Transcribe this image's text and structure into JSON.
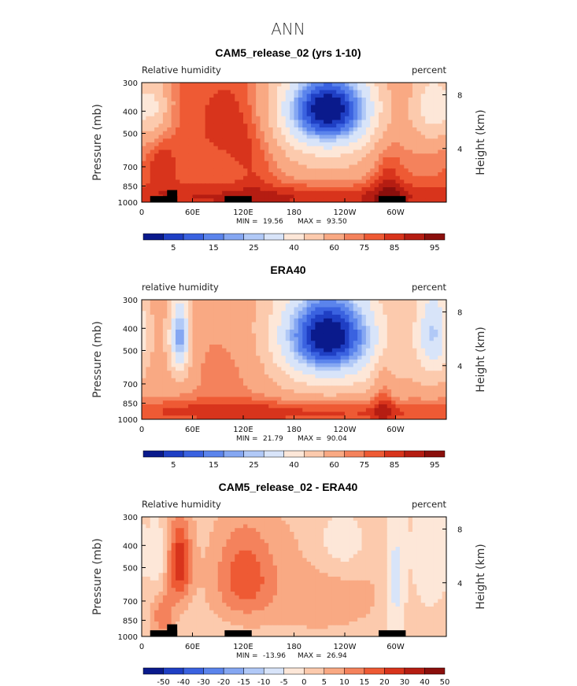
{
  "figure_title": "ANN",
  "colors": {
    "abs_palette": [
      "#0a1a8c",
      "#1f3fc4",
      "#3a62e0",
      "#5b84ec",
      "#85a7f2",
      "#b1c9f7",
      "#d8e4f9",
      "#fde7d8",
      "#fccaad",
      "#f9a983",
      "#f4825c",
      "#ee5a34",
      "#d8341c",
      "#b51d12",
      "#8a0f0c"
    ],
    "diff_palette": [
      "#0a1a8c",
      "#1f3fc4",
      "#3a62e0",
      "#5b84ec",
      "#85a7f2",
      "#b1c9f7",
      "#d8e4f9",
      "#fde7d8",
      "#fccaad",
      "#f9a983",
      "#f4825c",
      "#ee5a34",
      "#d8341c",
      "#b51d12",
      "#8a0f0c"
    ]
  },
  "chart_data": [
    {
      "type": "heatmap",
      "title": "CAM5_release_02 (yrs 1-10)",
      "left_label": "Relative humidity",
      "right_label": "percent",
      "ylabel": "Pressure (mb)",
      "y2label": "Height (km)",
      "yticks": [
        "300",
        "400",
        "500",
        "700",
        "850",
        "1000"
      ],
      "y2ticks": [
        "8",
        "4"
      ],
      "xticks": [
        "0",
        "60E",
        "120E",
        "180",
        "120W",
        "60W"
      ],
      "min_label": "MIN =",
      "min_value": "19.56",
      "max_label": "MAX =",
      "max_value": "93.50",
      "colorbar_ticks": [
        "5",
        "15",
        "25",
        "40",
        "60",
        "75",
        "85",
        "95"
      ],
      "palette": "abs",
      "base": 75,
      "features": [
        {
          "lon": 25,
          "p": 700,
          "amp": 10,
          "slon": 12,
          "sp": 120
        },
        {
          "lon": 105,
          "p": 450,
          "amp": 10,
          "slon": 30,
          "sp": 140
        },
        {
          "lon": 135,
          "p": 650,
          "amp": 8,
          "slon": 20,
          "sp": 180
        },
        {
          "lon": 220,
          "p": 380,
          "amp": -62,
          "slon": 42,
          "sp": 120
        },
        {
          "lon": 220,
          "p": 550,
          "amp": -20,
          "slon": 55,
          "sp": 200
        },
        {
          "lon": 345,
          "p": 380,
          "amp": -30,
          "slon": 18,
          "sp": 110
        },
        {
          "lon": 18,
          "p": 380,
          "amp": -20,
          "slon": 12,
          "sp": 90
        },
        {
          "lon": 290,
          "p": 800,
          "amp": 12,
          "slon": 14,
          "sp": 250
        },
        {
          "lon": 180,
          "p": 950,
          "amp": 12,
          "slon": 200,
          "sp": 90
        }
      ]
    },
    {
      "type": "heatmap",
      "title": "ERA40",
      "left_label": "relative humidity",
      "right_label": "percent",
      "ylabel": "Pressure (mb)",
      "y2label": "Height (km)",
      "yticks": [
        "300",
        "400",
        "500",
        "700",
        "850",
        "1000"
      ],
      "y2ticks": [
        "8",
        "4"
      ],
      "xticks": [
        "0",
        "60E",
        "120E",
        "180",
        "120W",
        "60W"
      ],
      "min_label": "MIN =",
      "min_value": "21.79",
      "max_label": "MAX =",
      "max_value": "90.04",
      "colorbar_ticks": [
        "5",
        "15",
        "25",
        "40",
        "60",
        "75",
        "85",
        "95"
      ],
      "palette": "abs",
      "base": 66,
      "features": [
        {
          "lon": 45,
          "p": 440,
          "amp": -45,
          "slon": 9,
          "sp": 130
        },
        {
          "lon": 220,
          "p": 420,
          "amp": -55,
          "slon": 42,
          "sp": 140
        },
        {
          "lon": 220,
          "p": 560,
          "amp": -15,
          "slon": 60,
          "sp": 220
        },
        {
          "lon": 345,
          "p": 420,
          "amp": -35,
          "slon": 15,
          "sp": 150
        },
        {
          "lon": 180,
          "p": 930,
          "amp": 18,
          "slon": 220,
          "sp": 90
        },
        {
          "lon": 285,
          "p": 800,
          "amp": 12,
          "slon": 8,
          "sp": 250
        },
        {
          "lon": 110,
          "p": 600,
          "amp": 8,
          "slon": 40,
          "sp": 200
        }
      ]
    },
    {
      "type": "heatmap",
      "title": "CAM5_release_02 - ERA40",
      "left_label": "Relative humidity",
      "right_label": "percent",
      "ylabel": "Pressure (mb)",
      "y2label": "Height (km)",
      "yticks": [
        "300",
        "400",
        "500",
        "700",
        "850",
        "1000"
      ],
      "y2ticks": [
        "8",
        "4"
      ],
      "xticks": [
        "0",
        "60E",
        "120E",
        "180",
        "120W",
        "60W"
      ],
      "min_label": "MIN =",
      "min_value": "-13.96",
      "max_label": "MAX =",
      "max_value": "26.94",
      "colorbar_ticks": [
        "-50",
        "-40",
        "-30",
        "-20",
        "-15",
        "-10",
        "-5",
        "0",
        "5",
        "10",
        "15",
        "20",
        "30",
        "40",
        "50"
      ],
      "palette": "diff",
      "base": 2,
      "features": [
        {
          "lon": 45,
          "p": 480,
          "amp": 22,
          "slon": 10,
          "sp": 140
        },
        {
          "lon": 120,
          "p": 550,
          "amp": 15,
          "slon": 25,
          "sp": 180
        },
        {
          "lon": 210,
          "p": 620,
          "amp": 6,
          "slon": 60,
          "sp": 250
        },
        {
          "lon": 235,
          "p": 400,
          "amp": -8,
          "slon": 25,
          "sp": 100
        },
        {
          "lon": 300,
          "p": 600,
          "amp": -10,
          "slon": 8,
          "sp": 300
        },
        {
          "lon": 340,
          "p": 450,
          "amp": -7,
          "slon": 15,
          "sp": 200
        },
        {
          "lon": 20,
          "p": 500,
          "amp": -6,
          "slon": 8,
          "sp": 150
        },
        {
          "lon": 25,
          "p": 800,
          "amp": 12,
          "slon": 10,
          "sp": 150
        }
      ]
    }
  ]
}
